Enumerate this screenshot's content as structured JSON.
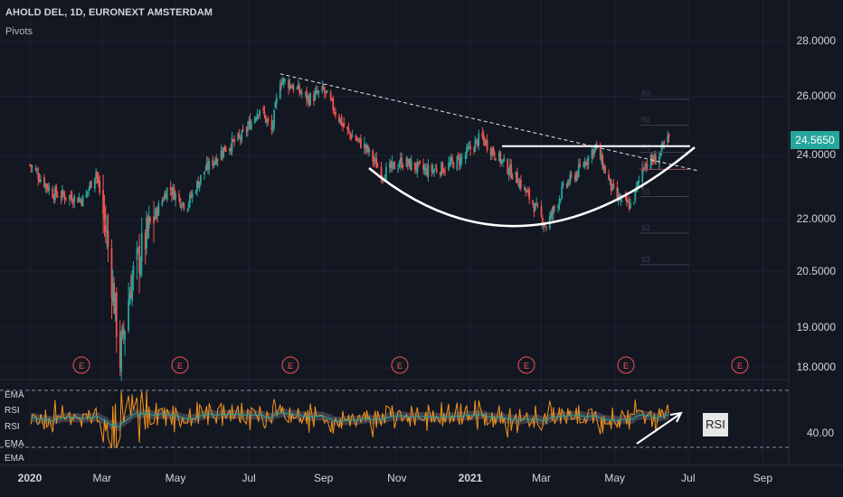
{
  "header": {
    "symbol": "AHOLD DEL, 1D, EURONEXT AMSTERDAM",
    "indicator": "Pivots"
  },
  "price_axis": [
    "28.0000",
    "26.0000",
    "24.0000",
    "22.0000",
    "20.5000",
    "19.0000",
    "18.0000"
  ],
  "current_price": "24.5650",
  "rsi_axis_label": "40.00",
  "indicator_labels": [
    "EMA",
    "RSI",
    "RSI",
    "EMA",
    "EMA"
  ],
  "rsi_annotation": "RSI",
  "earnings_marker": "E",
  "time_axis": [
    {
      "label": "2020",
      "bold": true
    },
    {
      "label": "Mar",
      "bold": false
    },
    {
      "label": "May",
      "bold": false
    },
    {
      "label": "Jul",
      "bold": false
    },
    {
      "label": "Sep",
      "bold": false
    },
    {
      "label": "Nov",
      "bold": false
    },
    {
      "label": "2021",
      "bold": true
    },
    {
      "label": "Mar",
      "bold": false
    },
    {
      "label": "May",
      "bold": false
    },
    {
      "label": "Jul",
      "bold": false
    },
    {
      "label": "Sep",
      "bold": false
    }
  ],
  "pivot_labels": [
    "R3",
    "R2",
    "R1",
    "P",
    "S1",
    "S2",
    "S3"
  ],
  "colors": {
    "background": "#131722",
    "up": "#26a69a",
    "down": "#ef5350",
    "rsi_line": "#f7931a",
    "ema_line": "#26a69a",
    "annotation": "#ffffff",
    "earnings": "#ef5350"
  },
  "chart_data": {
    "type": "candlestick",
    "title": "AHOLD DEL, 1D, EURONEXT AMSTERDAM",
    "y_scale": "log",
    "ylim": [
      17.8,
      29.0
    ],
    "x_ticks": [
      "2020",
      "Mar",
      "May",
      "Jul",
      "Sep",
      "Nov",
      "2021",
      "Mar",
      "May",
      "Jul",
      "Sep"
    ],
    "close_path": [
      [
        "2020-01-01",
        23.7
      ],
      [
        "2020-01-20",
        22.8
      ],
      [
        "2020-02-15",
        22.6
      ],
      [
        "2020-02-25",
        23.5
      ],
      [
        "2020-03-05",
        21.5
      ],
      [
        "2020-03-16",
        18.2
      ],
      [
        "2020-03-25",
        20.2
      ],
      [
        "2020-04-10",
        21.8
      ],
      [
        "2020-04-25",
        23.0
      ],
      [
        "2020-05-10",
        22.4
      ],
      [
        "2020-05-25",
        23.5
      ],
      [
        "2020-06-10",
        24.2
      ],
      [
        "2020-06-25",
        24.6
      ],
      [
        "2020-07-10",
        25.6
      ],
      [
        "2020-07-20",
        24.8
      ],
      [
        "2020-07-27",
        26.6
      ],
      [
        "2020-08-05",
        26.4
      ],
      [
        "2020-08-20",
        25.9
      ],
      [
        "2020-09-01",
        26.2
      ],
      [
        "2020-09-20",
        24.8
      ],
      [
        "2020-10-05",
        24.3
      ],
      [
        "2020-10-20",
        23.4
      ],
      [
        "2020-11-05",
        23.8
      ],
      [
        "2020-11-25",
        23.5
      ],
      [
        "2020-12-10",
        23.6
      ],
      [
        "2020-12-25",
        23.9
      ],
      [
        "2021-01-10",
        24.6
      ],
      [
        "2021-01-25",
        23.9
      ],
      [
        "2021-02-10",
        23.2
      ],
      [
        "2021-02-25",
        22.3
      ],
      [
        "2021-03-05",
        21.8
      ],
      [
        "2021-03-20",
        23.0
      ],
      [
        "2021-04-01",
        23.5
      ],
      [
        "2021-04-15",
        24.3
      ],
      [
        "2021-05-01",
        22.7
      ],
      [
        "2021-05-15",
        22.4
      ],
      [
        "2021-05-25",
        23.7
      ],
      [
        "2021-06-05",
        23.9
      ],
      [
        "2021-06-15",
        24.56
      ]
    ],
    "annotations": {
      "neckline": 24.3,
      "descending_trendline": [
        [
          "2020-07-27",
          26.8
        ],
        [
          "2021-06-10",
          23.5
        ]
      ],
      "cup_shape": "rounded bottom (cup and handle)"
    },
    "rsi": {
      "level_label": 40.0,
      "annotation": "RSI rising"
    }
  }
}
